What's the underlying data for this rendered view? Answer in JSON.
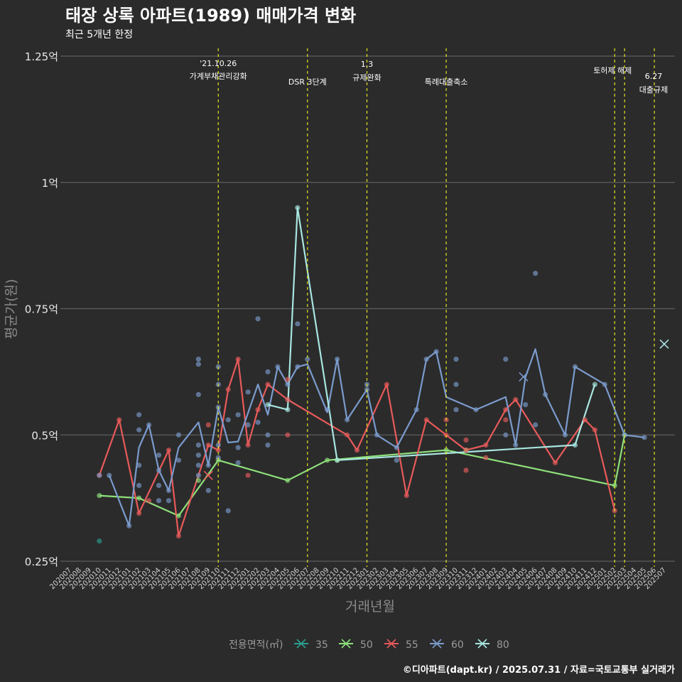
{
  "chart_data": {
    "type": "line",
    "title": "태장 상록 아파트(1989) 매매가격 변화",
    "subtitle": "최근 5개년 한정",
    "xlabel": "거래년월",
    "ylabel": "평균가(원)",
    "caption": "©디아파트(dapt.kr) / 2025.07.31 / 자료=국토교통부 실거래가",
    "y_ticks": [
      {
        "value": 0.25,
        "label": "0.25억"
      },
      {
        "value": 0.5,
        "label": "0.5억"
      },
      {
        "value": 0.75,
        "label": "0.75억"
      },
      {
        "value": 1.0,
        "label": "1억"
      },
      {
        "value": 1.25,
        "label": "1.25억"
      }
    ],
    "ylim": [
      0.25,
      1.25
    ],
    "categories": [
      "202007",
      "202008",
      "202009",
      "202010",
      "202011",
      "202012",
      "202101",
      "202102",
      "202103",
      "202104",
      "202105",
      "202106",
      "202107",
      "202108",
      "202109",
      "202110",
      "202111",
      "202112",
      "202201",
      "202202",
      "202203",
      "202204",
      "202205",
      "202206",
      "202207",
      "202208",
      "202209",
      "202210",
      "202211",
      "202212",
      "202301",
      "202302",
      "202303",
      "202304",
      "202305",
      "202306",
      "202307",
      "202308",
      "202309",
      "202310",
      "202311",
      "202312",
      "202401",
      "202402",
      "202403",
      "202404",
      "202405",
      "202406",
      "202407",
      "202408",
      "202409",
      "202410",
      "202411",
      "202412",
      "202501",
      "202502",
      "202503",
      "202504",
      "202505",
      "202506",
      "202507"
    ],
    "events": [
      {
        "x": 15.0,
        "lines": [
          "'21.10.26",
          "가계부채관리강화"
        ]
      },
      {
        "x": 24.0,
        "lines": [
          "DSR 3단계"
        ]
      },
      {
        "x": 30.0,
        "lines": [
          "1.3",
          "규제완화"
        ]
      },
      {
        "x": 38.0,
        "lines": [
          "특례대출축소"
        ]
      },
      {
        "x": 55.0,
        "lines": [
          "토허제 해제"
        ]
      },
      {
        "x": 56.0,
        "lines": []
      },
      {
        "x": 59.0,
        "lines": [
          "6.27",
          "대출규제"
        ]
      }
    ],
    "legend_title": "전용면적(㎡)",
    "series": [
      {
        "name": "35",
        "color": "#2a9d8f",
        "line": [],
        "points": [
          [
            3.0,
            0.29
          ]
        ],
        "crosses": []
      },
      {
        "name": "50",
        "color": "#8ee07a",
        "line": [
          [
            3.0,
            0.38
          ],
          [
            7.0,
            0.375
          ],
          [
            11.0,
            0.34
          ],
          [
            15.0,
            0.45
          ],
          [
            22.0,
            0.41
          ],
          [
            26.0,
            0.45
          ],
          [
            38.0,
            0.47
          ],
          [
            55.0,
            0.4
          ],
          [
            56.0,
            0.5
          ]
        ],
        "points": [
          [
            3.0,
            0.38
          ],
          [
            7.0,
            0.375
          ],
          [
            11.0,
            0.34
          ],
          [
            13.0,
            0.41
          ],
          [
            15.0,
            0.45
          ],
          [
            22.0,
            0.41
          ],
          [
            26.0,
            0.45
          ],
          [
            27.0,
            0.45
          ],
          [
            38.0,
            0.47
          ],
          [
            40.0,
            0.47
          ],
          [
            55.0,
            0.4
          ],
          [
            56.0,
            0.5
          ]
        ],
        "crosses": []
      },
      {
        "name": "55",
        "color": "#e85a5a",
        "line": [
          [
            3.0,
            0.42
          ],
          [
            5.0,
            0.53
          ],
          [
            7.0,
            0.345
          ],
          [
            10.0,
            0.47
          ],
          [
            11.0,
            0.3
          ],
          [
            14.0,
            0.48
          ],
          [
            15.0,
            0.47
          ],
          [
            16.0,
            0.59
          ],
          [
            17.0,
            0.65
          ],
          [
            18.0,
            0.48
          ],
          [
            19.0,
            0.55
          ],
          [
            20.0,
            0.6
          ],
          [
            22.0,
            0.57
          ],
          [
            28.0,
            0.5
          ],
          [
            29.0,
            0.47
          ],
          [
            32.0,
            0.6
          ],
          [
            34.0,
            0.38
          ],
          [
            36.0,
            0.53
          ],
          [
            38.0,
            0.5
          ],
          [
            40.0,
            0.47
          ],
          [
            42.0,
            0.48
          ],
          [
            44.0,
            0.55
          ],
          [
            45.0,
            0.57
          ],
          [
            49.0,
            0.445
          ],
          [
            52.0,
            0.53
          ],
          [
            53.0,
            0.51
          ],
          [
            55.0,
            0.35
          ]
        ],
        "points": [
          [
            3.0,
            0.42
          ],
          [
            5.0,
            0.53
          ],
          [
            7.0,
            0.345
          ],
          [
            8.0,
            0.37
          ],
          [
            10.0,
            0.47
          ],
          [
            11.0,
            0.3
          ],
          [
            14.0,
            0.48
          ],
          [
            14.0,
            0.52
          ],
          [
            15.0,
            0.47
          ],
          [
            16.0,
            0.59
          ],
          [
            17.0,
            0.65
          ],
          [
            18.0,
            0.42
          ],
          [
            18.0,
            0.48
          ],
          [
            19.0,
            0.55
          ],
          [
            20.0,
            0.6
          ],
          [
            22.0,
            0.5
          ],
          [
            22.0,
            0.61
          ],
          [
            22.0,
            0.57
          ],
          [
            28.0,
            0.5
          ],
          [
            29.0,
            0.47
          ],
          [
            32.0,
            0.6
          ],
          [
            34.0,
            0.38
          ],
          [
            36.0,
            0.53
          ],
          [
            38.0,
            0.5
          ],
          [
            38.0,
            0.53
          ],
          [
            40.0,
            0.47
          ],
          [
            40.0,
            0.43
          ],
          [
            40.0,
            0.49
          ],
          [
            42.0,
            0.455
          ],
          [
            42.0,
            0.48
          ],
          [
            44.0,
            0.53
          ],
          [
            44.0,
            0.55
          ],
          [
            45.0,
            0.57
          ],
          [
            49.0,
            0.445
          ],
          [
            52.0,
            0.53
          ],
          [
            53.0,
            0.51
          ],
          [
            55.0,
            0.35
          ]
        ],
        "crosses": [
          [
            14.0,
            0.42
          ]
        ]
      },
      {
        "name": "60",
        "color": "#7b9bcd",
        "line": [
          [
            4.0,
            0.42
          ],
          [
            6.0,
            0.32
          ],
          [
            7.0,
            0.475
          ],
          [
            8.0,
            0.52
          ],
          [
            9.0,
            0.43
          ],
          [
            10.0,
            0.39
          ],
          [
            11.0,
            0.475
          ],
          [
            13.0,
            0.525
          ],
          [
            14.0,
            0.44
          ],
          [
            15.0,
            0.555
          ],
          [
            16.0,
            0.485
          ],
          [
            17.0,
            0.487
          ],
          [
            19.0,
            0.6
          ],
          [
            20.0,
            0.54
          ],
          [
            21.0,
            0.635
          ],
          [
            22.0,
            0.6
          ],
          [
            23.0,
            0.635
          ],
          [
            24.0,
            0.64
          ],
          [
            26.0,
            0.545
          ],
          [
            27.0,
            0.65
          ],
          [
            28.0,
            0.53
          ],
          [
            30.0,
            0.59
          ],
          [
            31.0,
            0.5
          ],
          [
            33.0,
            0.475
          ],
          [
            35.0,
            0.55
          ],
          [
            36.0,
            0.65
          ],
          [
            37.0,
            0.665
          ],
          [
            38.0,
            0.575
          ],
          [
            41.0,
            0.55
          ],
          [
            44.0,
            0.575
          ],
          [
            45.0,
            0.48
          ],
          [
            46.0,
            0.615
          ],
          [
            47.0,
            0.67
          ],
          [
            48.0,
            0.58
          ],
          [
            50.0,
            0.5
          ],
          [
            51.0,
            0.635
          ],
          [
            54.0,
            0.6
          ],
          [
            56.0,
            0.5
          ],
          [
            58.0,
            0.495
          ]
        ],
        "points": [
          [
            3.0,
            0.42
          ],
          [
            4.0,
            0.42
          ],
          [
            6.0,
            0.32
          ],
          [
            7.0,
            0.54
          ],
          [
            7.0,
            0.51
          ],
          [
            7.0,
            0.44
          ],
          [
            7.0,
            0.4
          ],
          [
            8.0,
            0.52
          ],
          [
            9.0,
            0.46
          ],
          [
            9.0,
            0.43
          ],
          [
            9.0,
            0.4
          ],
          [
            9.0,
            0.37
          ],
          [
            10.0,
            0.39
          ],
          [
            10.0,
            0.37
          ],
          [
            11.0,
            0.5
          ],
          [
            11.0,
            0.45
          ],
          [
            13.0,
            0.65
          ],
          [
            13.0,
            0.64
          ],
          [
            13.0,
            0.58
          ],
          [
            13.0,
            0.48
          ],
          [
            13.0,
            0.46
          ],
          [
            13.0,
            0.44
          ],
          [
            13.0,
            0.42
          ],
          [
            14.0,
            0.44
          ],
          [
            14.0,
            0.39
          ],
          [
            15.0,
            0.635
          ],
          [
            15.0,
            0.6
          ],
          [
            15.0,
            0.555
          ],
          [
            15.0,
            0.48
          ],
          [
            15.0,
            0.455
          ],
          [
            16.0,
            0.53
          ],
          [
            16.0,
            0.35
          ],
          [
            17.0,
            0.54
          ],
          [
            17.0,
            0.475
          ],
          [
            17.0,
            0.445
          ],
          [
            18.0,
            0.585
          ],
          [
            18.0,
            0.52
          ],
          [
            19.0,
            0.73
          ],
          [
            19.0,
            0.525
          ],
          [
            20.0,
            0.625
          ],
          [
            20.0,
            0.5
          ],
          [
            20.0,
            0.48
          ],
          [
            21.0,
            0.635
          ],
          [
            22.0,
            0.6
          ],
          [
            23.0,
            0.72
          ],
          [
            23.0,
            0.635
          ],
          [
            24.0,
            0.65
          ],
          [
            26.0,
            0.55
          ],
          [
            27.0,
            0.65
          ],
          [
            28.0,
            0.53
          ],
          [
            30.0,
            0.6
          ],
          [
            30.0,
            0.59
          ],
          [
            31.0,
            0.5
          ],
          [
            33.0,
            0.45
          ],
          [
            33.0,
            0.475
          ],
          [
            35.0,
            0.55
          ],
          [
            36.0,
            0.65
          ],
          [
            37.0,
            0.665
          ],
          [
            39.0,
            0.65
          ],
          [
            39.0,
            0.6
          ],
          [
            39.0,
            0.55
          ],
          [
            41.0,
            0.55
          ],
          [
            44.0,
            0.65
          ],
          [
            44.0,
            0.5
          ],
          [
            45.0,
            0.48
          ],
          [
            46.0,
            0.56
          ],
          [
            47.0,
            0.82
          ],
          [
            47.0,
            0.52
          ],
          [
            48.0,
            0.58
          ],
          [
            50.0,
            0.5
          ],
          [
            51.0,
            0.635
          ],
          [
            54.0,
            0.6
          ],
          [
            56.0,
            0.5
          ],
          [
            58.0,
            0.495
          ]
        ],
        "crosses": [
          [
            45.8,
            0.615
          ]
        ]
      },
      {
        "name": "80",
        "color": "#a8e6e0",
        "line": [
          [
            20.0,
            0.56
          ],
          [
            22.0,
            0.55
          ],
          [
            23.0,
            0.95
          ],
          [
            27.0,
            0.45
          ],
          [
            51.0,
            0.48
          ],
          [
            53.0,
            0.6
          ]
        ],
        "points": [
          [
            20.0,
            0.56
          ],
          [
            22.0,
            0.55
          ],
          [
            23.0,
            0.95
          ],
          [
            27.0,
            0.45
          ],
          [
            51.0,
            0.48
          ],
          [
            53.0,
            0.6
          ]
        ],
        "crosses": [
          [
            60.0,
            0.68
          ]
        ]
      }
    ]
  }
}
